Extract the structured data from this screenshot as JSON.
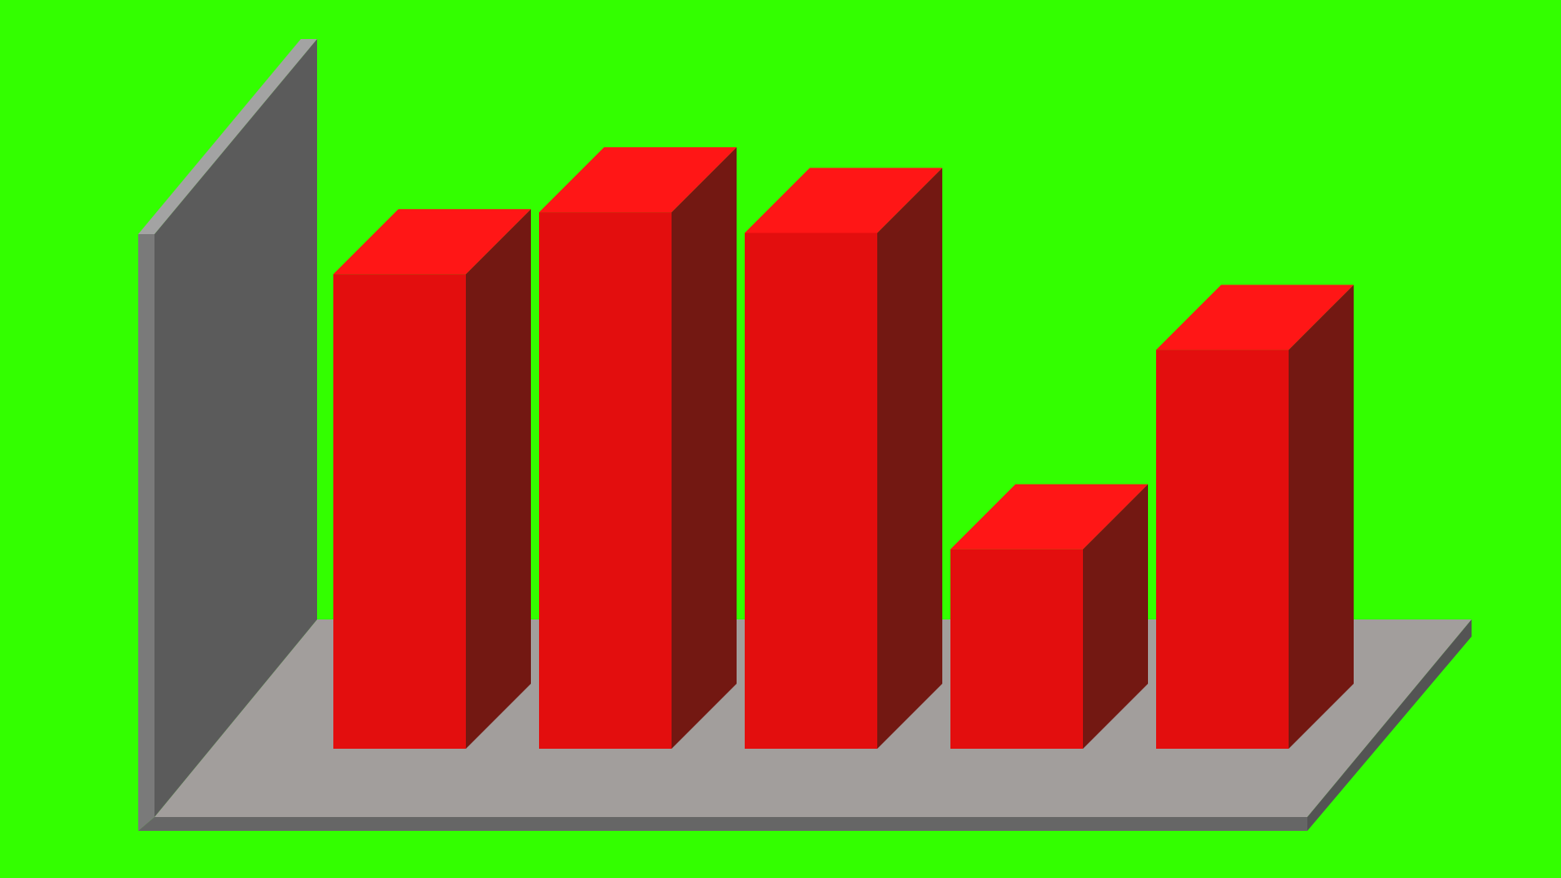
{
  "chart_data": {
    "type": "bar",
    "categories": [
      "",
      "",
      "",
      "",
      ""
    ],
    "values": [
      69,
      78,
      75,
      29,
      58
    ],
    "ylim": [
      0,
      100
    ],
    "grid": false,
    "legend": "none",
    "title": "",
    "xlabel": "",
    "ylabel": ""
  },
  "colors": {
    "background": "#33ff00",
    "bar_front": "#e30e0e",
    "bar_top": "#ff1616",
    "bar_side": "#731812",
    "wall_face": "#5b5b5b",
    "wall_edge": "#a3a3a3",
    "wall_side": "#7a7a7a",
    "floor_top": "#a29e9c",
    "floor_front": "#666666",
    "floor_side": "#545454"
  }
}
